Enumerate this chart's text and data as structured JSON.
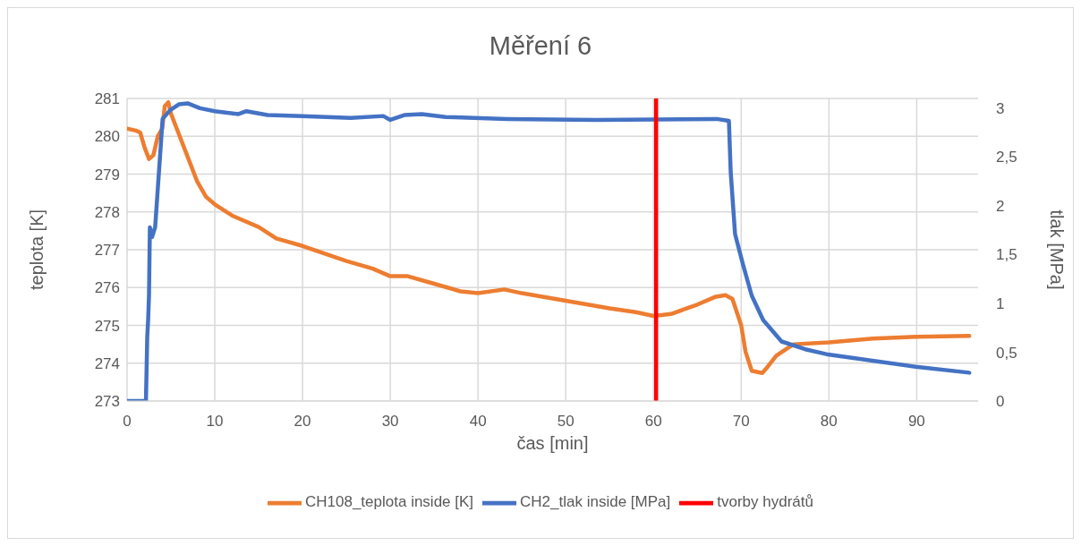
{
  "chart_data": {
    "type": "line",
    "title": "Měření 6",
    "xlabel": "čas [min]",
    "ylabel": "teplota [K]",
    "y2label": "tlak [MPa]",
    "xlim": [
      0,
      97
    ],
    "xticks": [
      0,
      10,
      20,
      30,
      40,
      50,
      60,
      70,
      80,
      90
    ],
    "ylim": [
      273,
      281
    ],
    "yticks": [
      273,
      274,
      275,
      276,
      277,
      278,
      279,
      280,
      281
    ],
    "y2lim": [
      0,
      3.1
    ],
    "y2ticks": [
      0,
      {
        "value": 0.5,
        "label": "0,5"
      },
      1,
      {
        "value": 1.5,
        "label": "1,5"
      },
      2,
      {
        "value": 2.5,
        "label": "2,5"
      },
      3
    ],
    "grid": true,
    "legend": "bottom",
    "marker": "none",
    "line_style": "solid",
    "series": [
      {
        "name": "CH108_teplota inside [K]",
        "color": "#ed7d31",
        "axis": "y",
        "x": [
          0,
          1,
          1.5,
          2,
          2.5,
          3,
          3.5,
          4,
          4.3,
          4.7,
          5,
          6,
          7,
          8,
          9,
          10,
          12,
          15,
          17,
          20,
          25,
          28,
          30,
          32,
          35,
          38,
          40,
          43,
          45,
          50,
          55,
          58,
          60,
          62,
          65,
          67,
          68.2,
          69,
          70,
          70.5,
          71.2,
          72.4,
          73,
          74,
          75.3,
          76,
          80,
          85,
          90,
          96
        ],
        "values": [
          280.2,
          280.15,
          280.1,
          279.7,
          279.4,
          279.5,
          280.0,
          280.2,
          280.8,
          280.9,
          280.6,
          280.0,
          279.4,
          278.8,
          278.4,
          278.2,
          277.9,
          277.6,
          277.3,
          277.1,
          276.7,
          276.5,
          276.3,
          276.3,
          276.1,
          275.9,
          275.85,
          275.95,
          275.85,
          275.65,
          275.45,
          275.35,
          275.25,
          275.3,
          275.55,
          275.75,
          275.8,
          275.7,
          275.0,
          274.3,
          273.8,
          273.74,
          273.9,
          274.2,
          274.4,
          274.5,
          274.55,
          274.65,
          274.7,
          274.72
        ]
      },
      {
        "name": "CH2_tlak inside [MPa]",
        "color": "#4472c4",
        "axis": "y2",
        "x": [
          0,
          2.15,
          2.3,
          2.4,
          2.5,
          2.6,
          2.85,
          3.2,
          4.05,
          4.9,
          5.9,
          6.9,
          8.3,
          10,
          12.7,
          13.6,
          16,
          20,
          25.5,
          29.2,
          30,
          31.6,
          33.6,
          36.3,
          43.3,
          53.5,
          67.2,
          68.6,
          68.8,
          69.3,
          70.2,
          71.2,
          72.5,
          74.6,
          77.3,
          79.7,
          89.9,
          96
        ],
        "values": [
          0,
          0,
          0.66,
          0.83,
          1.08,
          1.78,
          1.68,
          1.78,
          2.89,
          2.98,
          3.04,
          3.05,
          3.0,
          2.97,
          2.94,
          2.97,
          2.93,
          2.92,
          2.9,
          2.92,
          2.88,
          2.93,
          2.94,
          2.91,
          2.89,
          2.88,
          2.89,
          2.87,
          2.35,
          1.71,
          1.4,
          1.08,
          0.83,
          0.61,
          0.53,
          0.48,
          0.35,
          0.29
        ]
      },
      {
        "name": "tvorby hydrátů",
        "color": "#ff0000",
        "axis": "y",
        "x": [
          60.3,
          60.3
        ],
        "values": [
          273,
          281
        ]
      }
    ]
  }
}
